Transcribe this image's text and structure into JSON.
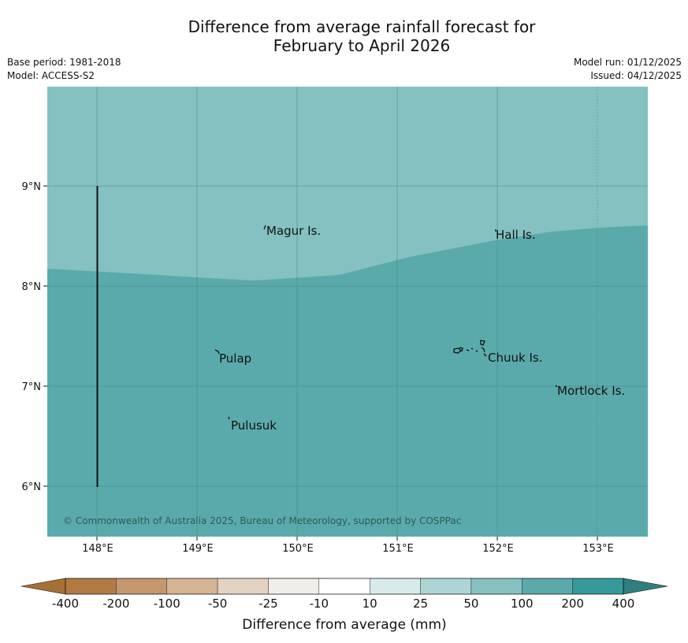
{
  "header": {
    "title_line1": "Difference from average rainfall forecast for",
    "title_line2": "February to April 2026",
    "base_period": "Base period: 1981-2018",
    "model": "Model: ACCESS-S2",
    "model_run": "Model run: 01/12/2025",
    "issued": "Issued: 04/12/2025"
  },
  "map": {
    "lat_ticks": [
      "9°N",
      "8°N",
      "7°N",
      "6°N"
    ],
    "lon_ticks": [
      "148°E",
      "149°E",
      "150°E",
      "151°E",
      "152°E",
      "153°E"
    ],
    "places": {
      "magur": "Magur Is.",
      "hall": "Hall Is.",
      "pulap": "Pulap",
      "chuuk": "Chuuk Is.",
      "mortlock": "Mortlock Is.",
      "pulusuk": "Pulusuk"
    },
    "copyright": "© Commonwealth of Australia 2025, Bureau of Meteorology, supported by COSPPac",
    "colors": {
      "region_50_100": "#84c1c0",
      "region_100_200": "#5baaab",
      "grid": "#3f7c7a"
    }
  },
  "colorbar": {
    "title": "Difference from average (mm)",
    "ticks": [
      "-400",
      "-200",
      "-100",
      "-50",
      "-25",
      "-10",
      "10",
      "25",
      "50",
      "100",
      "200",
      "400"
    ],
    "colors": [
      "#a86f36",
      "#b27a43",
      "#c4976d",
      "#d4b393",
      "#e4d3c2",
      "#f1eee9",
      "#ffffff",
      "#d7ebea",
      "#aed5d4",
      "#84c1c0",
      "#5baaab",
      "#35999a",
      "#2e7f7d"
    ]
  }
}
